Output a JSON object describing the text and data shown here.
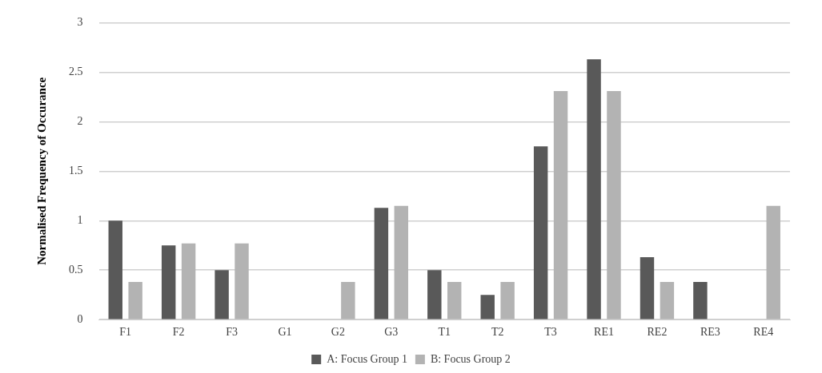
{
  "chart_data": {
    "type": "bar",
    "ylabel": "Normalised Frequency of Occurance",
    "categories": [
      "F1",
      "F2",
      "F3",
      "G1",
      "G2",
      "G3",
      "T1",
      "T2",
      "T3",
      "RE1",
      "RE2",
      "RE3",
      "RE4"
    ],
    "series": [
      {
        "name": "A: Focus Group 1",
        "color": "#595959",
        "values": [
          1.0,
          0.75,
          0.5,
          0,
          0,
          1.13,
          0.5,
          0.25,
          1.75,
          2.63,
          0.63,
          0.38,
          0
        ]
      },
      {
        "name": "B: Focus Group 2",
        "color": "#b3b3b3",
        "values": [
          0.38,
          0.77,
          0.77,
          0,
          0.38,
          1.15,
          0.38,
          0.38,
          2.31,
          2.31,
          0.38,
          0,
          1.15
        ]
      }
    ],
    "ylim": [
      0,
      3
    ],
    "yticks": [
      0,
      0.5,
      1,
      1.5,
      2,
      2.5,
      3
    ],
    "grid": "y",
    "legend": "bottom"
  }
}
